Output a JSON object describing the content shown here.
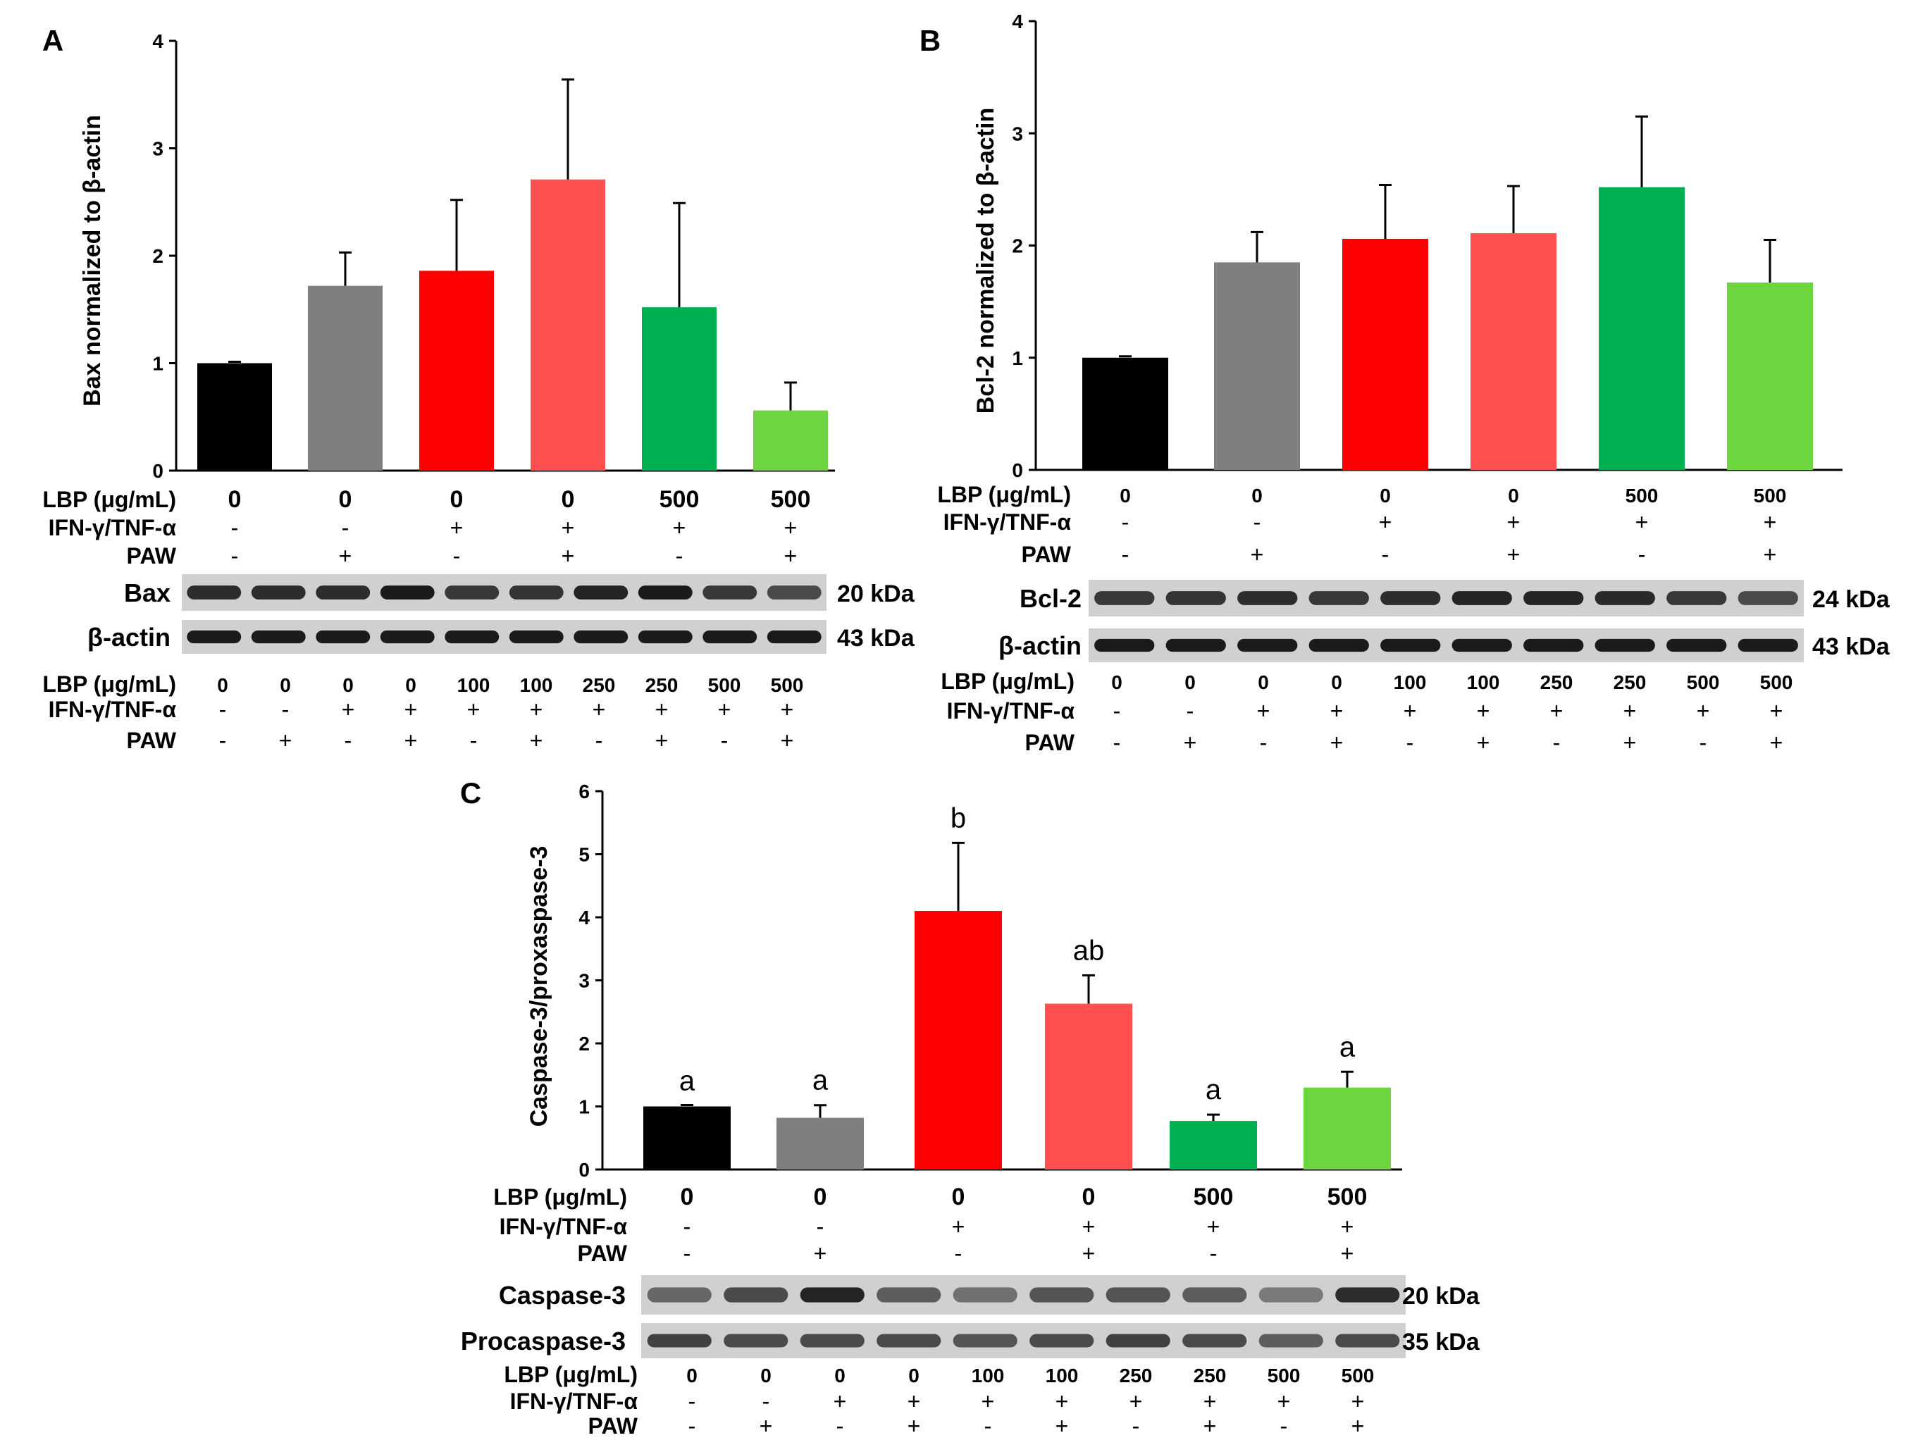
{
  "chart_data": [
    {
      "type": "bar",
      "panel_label": "A",
      "title": "",
      "xlabel": "",
      "ylabel": "Bax normalized to β-actin",
      "ylim": [
        0,
        4
      ],
      "yticks": [
        "0",
        "1",
        "2",
        "3",
        "4"
      ],
      "values": [
        1.0,
        1.72,
        1.86,
        2.71,
        1.52,
        0.56
      ],
      "errors": [
        0.01,
        0.31,
        0.66,
        0.93,
        0.97,
        0.26
      ],
      "colors": [
        "#000000",
        "#7f7f7f",
        "#ff0000",
        "#ff5050",
        "#00b050",
        "#6dd63e"
      ],
      "treatment_rows": [
        {
          "label": "LBP (μg/mL)",
          "values": [
            "0",
            "0",
            "0",
            "0",
            "500",
            "500"
          ]
        },
        {
          "label": "IFN-γ/TNF-α",
          "values": [
            "-",
            "-",
            "+",
            "+",
            "+",
            "+"
          ]
        },
        {
          "label": "PAW",
          "values": [
            "-",
            "+",
            "-",
            "+",
            "-",
            "+"
          ]
        }
      ],
      "blot": {
        "bands": [
          {
            "label": "Bax",
            "size": "20 kDa",
            "intensity": [
              0.85,
              0.85,
              0.85,
              0.95,
              0.8,
              0.82,
              0.9,
              0.95,
              0.8,
              0.7
            ]
          },
          {
            "label": "β-actin",
            "size": "43 kDa",
            "intensity": [
              0.95,
              0.95,
              0.95,
              0.95,
              0.95,
              0.95,
              0.95,
              0.95,
              0.95,
              0.95
            ]
          }
        ],
        "lane_rows": [
          {
            "label": "LBP (μg/mL)",
            "values": [
              "0",
              "0",
              "0",
              "0",
              "100",
              "100",
              "250",
              "250",
              "500",
              "500"
            ]
          },
          {
            "label": "IFN-γ/TNF-α",
            "values": [
              "-",
              "-",
              "+",
              "+",
              "+",
              "+",
              "+",
              "+",
              "+",
              "+"
            ]
          },
          {
            "label": "PAW",
            "values": [
              "-",
              "+",
              "-",
              "+",
              "-",
              "+",
              "-",
              "+",
              "-",
              "+"
            ]
          }
        ]
      }
    },
    {
      "type": "bar",
      "panel_label": "B",
      "title": "",
      "xlabel": "",
      "ylabel": "Bcl-2 normalized to β-actin",
      "ylim": [
        0,
        4
      ],
      "yticks": [
        "0",
        "1",
        "2",
        "3",
        "4"
      ],
      "values": [
        1.0,
        1.85,
        2.06,
        2.11,
        2.52,
        1.67
      ],
      "errors": [
        0.01,
        0.27,
        0.48,
        0.42,
        0.63,
        0.38
      ],
      "colors": [
        "#000000",
        "#7f7f7f",
        "#ff0000",
        "#ff5050",
        "#00b050",
        "#6dd63e"
      ],
      "treatment_rows": [
        {
          "label": "LBP (μg/mL)",
          "values": [
            "0",
            "0",
            "0",
            "0",
            "500",
            "500"
          ]
        },
        {
          "label": "IFN-γ/TNF-α",
          "values": [
            "-",
            "-",
            "+",
            "+",
            "+",
            "+"
          ]
        },
        {
          "label": "PAW",
          "values": [
            "-",
            "+",
            "-",
            "+",
            "-",
            "+"
          ]
        }
      ],
      "blot": {
        "bands": [
          {
            "label": "Bcl-2",
            "size": "24 kDa",
            "intensity": [
              0.8,
              0.82,
              0.85,
              0.8,
              0.85,
              0.9,
              0.9,
              0.88,
              0.8,
              0.7
            ]
          },
          {
            "label": "β-actin",
            "size": "43 kDa",
            "intensity": [
              0.95,
              0.95,
              0.95,
              0.95,
              0.95,
              0.95,
              0.95,
              0.95,
              0.95,
              0.95
            ]
          }
        ],
        "lane_rows": [
          {
            "label": "LBP (μg/mL)",
            "values": [
              "0",
              "0",
              "0",
              "0",
              "100",
              "100",
              "250",
              "250",
              "500",
              "500"
            ]
          },
          {
            "label": "IFN-γ/TNF-α",
            "values": [
              "-",
              "-",
              "+",
              "+",
              "+",
              "+",
              "+",
              "+",
              "+",
              "+"
            ]
          },
          {
            "label": "PAW",
            "values": [
              "-",
              "+",
              "-",
              "+",
              "-",
              "+",
              "-",
              "+",
              "-",
              "+"
            ]
          }
        ]
      }
    },
    {
      "type": "bar",
      "panel_label": "C",
      "title": "",
      "xlabel": "",
      "ylabel": "Caspase-3/proxaspase-3",
      "ylim": [
        0,
        6
      ],
      "yticks": [
        "0",
        "1",
        "2",
        "3",
        "4",
        "5",
        "6"
      ],
      "values": [
        1.0,
        0.82,
        4.1,
        2.63,
        0.77,
        1.3
      ],
      "errors": [
        0.01,
        0.2,
        1.08,
        0.45,
        0.1,
        0.25
      ],
      "significance": [
        "a",
        "a",
        "b",
        "ab",
        "a",
        "a"
      ],
      "colors": [
        "#000000",
        "#7f7f7f",
        "#ff0000",
        "#ff5050",
        "#00b050",
        "#6dd63e"
      ],
      "treatment_rows": [
        {
          "label": "LBP (μg/mL)",
          "values": [
            "0",
            "0",
            "0",
            "0",
            "500",
            "500"
          ]
        },
        {
          "label": "IFN-γ/TNF-α",
          "values": [
            "-",
            "-",
            "+",
            "+",
            "+",
            "+"
          ]
        },
        {
          "label": "PAW",
          "values": [
            "-",
            "+",
            "-",
            "+",
            "-",
            "+"
          ]
        }
      ],
      "blot": {
        "bands": [
          {
            "label": "Caspase-3",
            "size": "20 kDa",
            "intensity": [
              0.55,
              0.7,
              0.9,
              0.6,
              0.5,
              0.65,
              0.65,
              0.6,
              0.45,
              0.85
            ]
          },
          {
            "label": "Procaspase-3",
            "size": "35 kDa",
            "intensity": [
              0.75,
              0.7,
              0.7,
              0.7,
              0.65,
              0.7,
              0.75,
              0.7,
              0.6,
              0.7
            ]
          }
        ],
        "lane_rows": [
          {
            "label": "LBP (μg/mL)",
            "values": [
              "0",
              "0",
              "0",
              "0",
              "100",
              "100",
              "250",
              "250",
              "500",
              "500"
            ]
          },
          {
            "label": "IFN-γ/TNF-α",
            "values": [
              "-",
              "-",
              "+",
              "+",
              "+",
              "+",
              "+",
              "+",
              "+",
              "+"
            ]
          },
          {
            "label": "PAW",
            "values": [
              "-",
              "+",
              "-",
              "+",
              "-",
              "+",
              "-",
              "+",
              "-",
              "+"
            ]
          }
        ]
      }
    }
  ]
}
